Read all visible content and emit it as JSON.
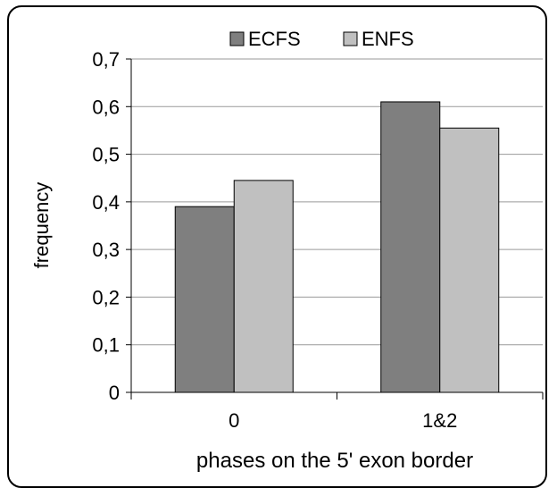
{
  "chart_data": {
    "type": "bar",
    "categories": [
      "0",
      "1&2"
    ],
    "series": [
      {
        "name": "ECFS",
        "values": [
          0.39,
          0.61
        ],
        "color": "#7f7f7f"
      },
      {
        "name": "ENFS",
        "values": [
          0.445,
          0.555
        ],
        "color": "#c0c0c0"
      }
    ],
    "title": "",
    "xlabel": "phases on the 5' exon border",
    "ylabel": "frequency",
    "ylim": [
      0,
      0.7
    ],
    "yticks": [
      "0",
      "0,1",
      "0,2",
      "0,3",
      "0,4",
      "0,5",
      "0,6",
      "0,7"
    ],
    "grid": true,
    "legend_position": "top"
  }
}
